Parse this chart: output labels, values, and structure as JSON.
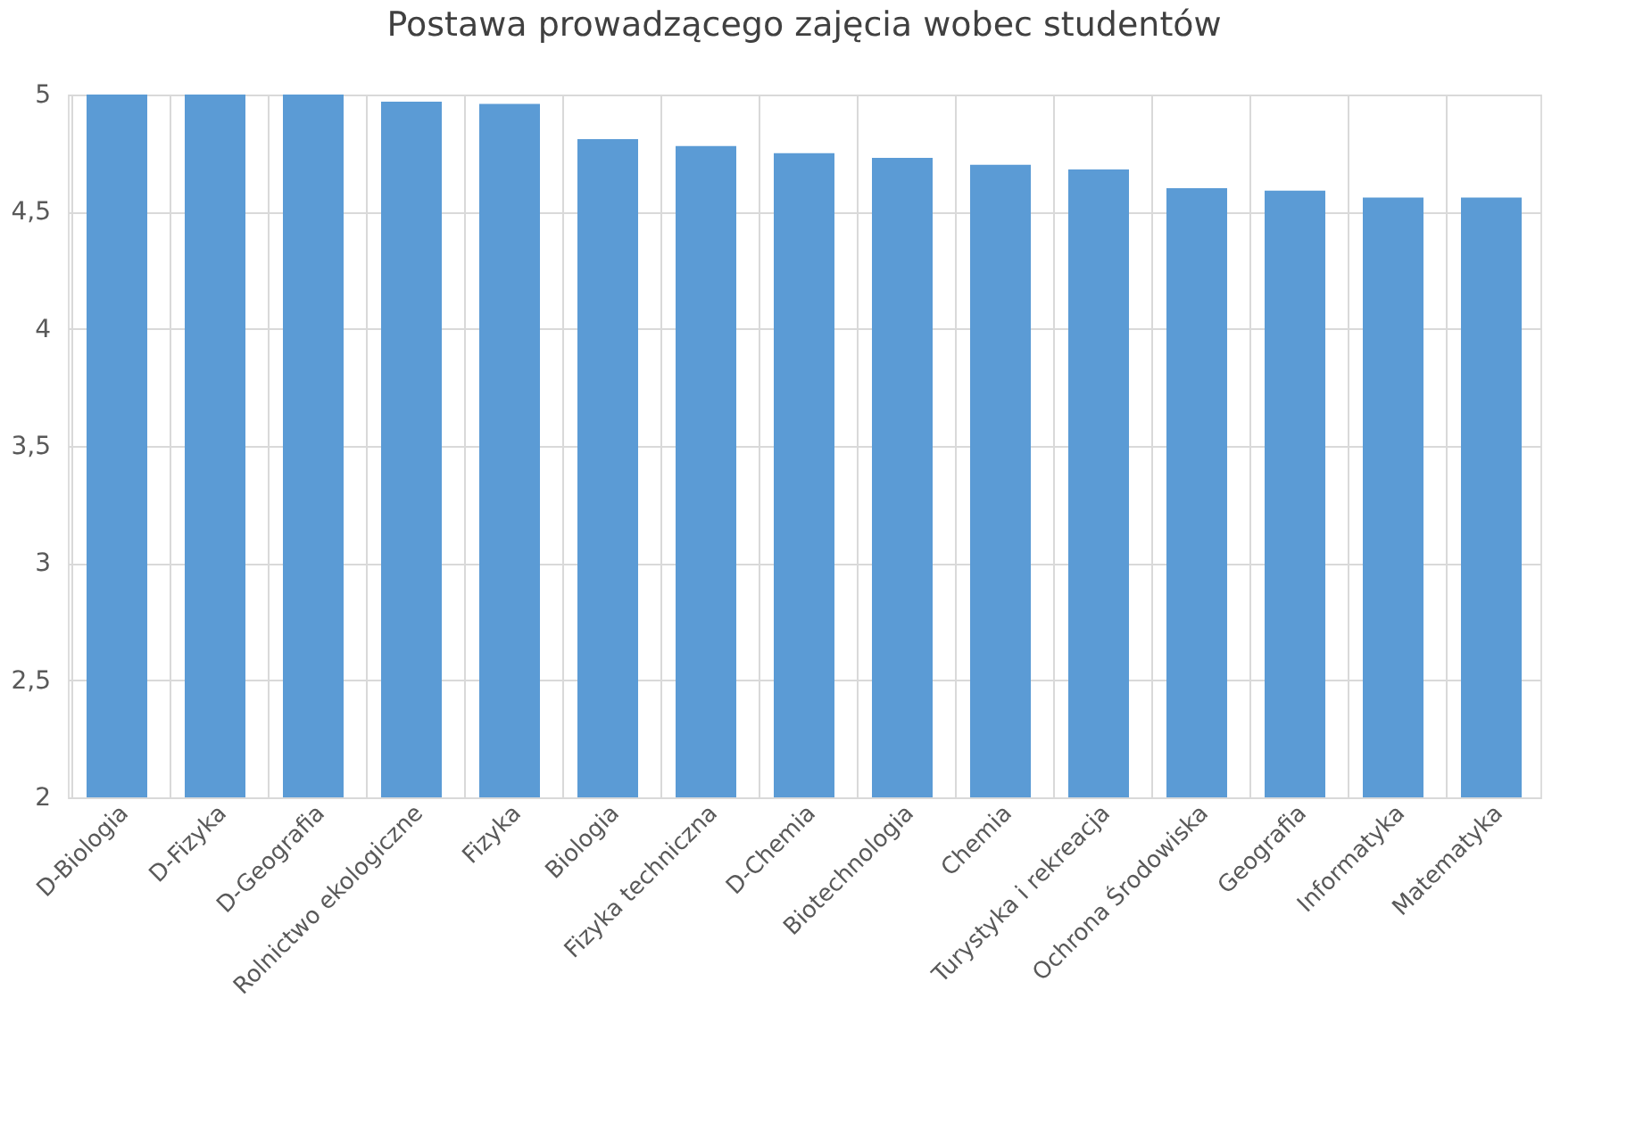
{
  "chart_data": {
    "type": "bar",
    "title": "Postawa prowadzącego zajęcia wobec studentów",
    "categories": [
      "D-Biologia",
      "D-Fizyka",
      "D-Geografia",
      "Rolnictwo ekologiczne",
      "Fizyka",
      "Biologia",
      "Fizyka techniczna",
      "D-Chemia",
      "Biotechnologia",
      "Chemia",
      "Turystyka i rekreacja",
      "Ochrona Środowiska",
      "Geografia",
      "Informatyka",
      "Matematyka"
    ],
    "values": [
      5,
      5,
      5,
      4.97,
      4.96,
      4.81,
      4.78,
      4.75,
      4.73,
      4.7,
      4.68,
      4.6,
      4.59,
      4.56,
      4.56
    ],
    "color": "#5b9bd5",
    "ylim": [
      2,
      5
    ],
    "yticks": [
      2,
      {
        "value": 2.5,
        "label": "2,5"
      },
      3,
      {
        "value": 3.5,
        "label": "3,5"
      },
      4,
      {
        "value": 4.5,
        "label": "4,5"
      },
      5
    ],
    "grid": true
  }
}
